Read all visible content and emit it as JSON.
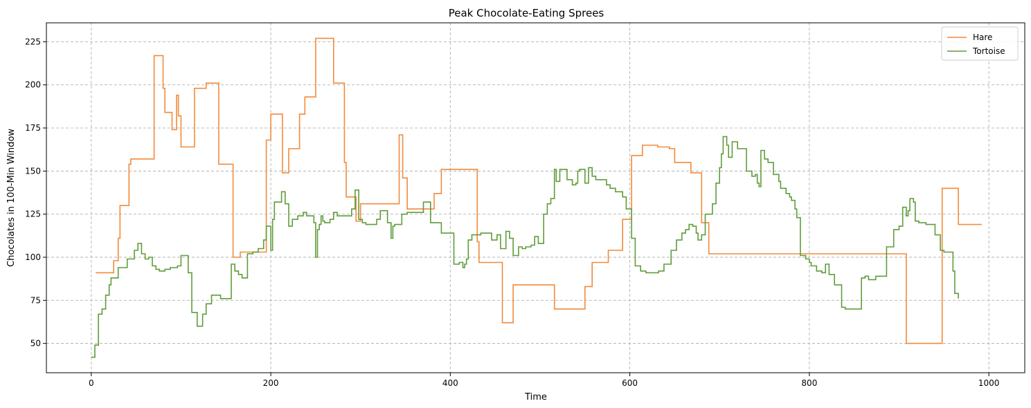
{
  "chart_data": {
    "type": "line",
    "step": "post",
    "title": "Peak Chocolate-Eating Sprees",
    "xlabel": "Time",
    "ylabel": "Chocolates in 100-Min Window",
    "xlim": [
      -50,
      1040
    ],
    "ylim": [
      33,
      236
    ],
    "xticks": [
      0,
      200,
      400,
      600,
      800,
      1000
    ],
    "yticks": [
      50,
      75,
      100,
      125,
      150,
      175,
      200,
      225
    ],
    "grid": true,
    "legend_position": "top-right",
    "series": [
      {
        "name": "Hare",
        "color": "#f28a3a",
        "x": [
          5,
          25,
          30,
          32,
          42,
          44,
          70,
          80,
          82,
          90,
          95,
          97,
          100,
          115,
          128,
          142,
          158,
          166,
          178,
          195,
          200,
          213,
          220,
          232,
          238,
          250,
          270,
          282,
          284,
          295,
          300,
          343,
          347,
          352,
          382,
          390,
          430,
          432,
          458,
          470,
          516,
          550,
          558,
          576,
          592,
          602,
          614,
          631,
          637,
          644,
          650,
          668,
          680,
          688,
          908,
          948,
          966,
          992
        ],
        "y": [
          91,
          98,
          111,
          130,
          154,
          157,
          217,
          198,
          184,
          174,
          194,
          182,
          164,
          198,
          201,
          154,
          100,
          103,
          103,
          168,
          183,
          149,
          163,
          183,
          193,
          227,
          201,
          155,
          135,
          121,
          131,
          171,
          146,
          128,
          137,
          151,
          109,
          97,
          62,
          84,
          70,
          83,
          97,
          104,
          122,
          159,
          165,
          164,
          164,
          163,
          155,
          149,
          120,
          102,
          50,
          140,
          119,
          119
        ]
      },
      {
        "name": "Tortoise",
        "color": "#5f9c3a",
        "x": [
          0,
          4,
          8,
          12,
          16,
          20,
          22,
          24,
          30,
          40,
          48,
          52,
          56,
          60,
          64,
          68,
          72,
          76,
          82,
          88,
          96,
          100,
          108,
          112,
          118,
          124,
          128,
          134,
          144,
          156,
          160,
          164,
          168,
          174,
          180,
          186,
          192,
          195,
          200,
          202,
          204,
          212,
          216,
          220,
          224,
          230,
          236,
          240,
          248,
          250,
          252,
          254,
          256,
          258,
          260,
          266,
          270,
          274,
          290,
          294,
          298,
          302,
          306,
          318,
          322,
          330,
          334,
          336,
          338,
          346,
          352,
          370,
          378,
          390,
          404,
          410,
          414,
          416,
          418,
          420,
          424,
          434,
          440,
          442,
          446,
          452,
          456,
          462,
          466,
          470,
          476,
          480,
          484,
          490,
          494,
          498,
          504,
          508,
          512,
          516,
          518,
          522,
          530,
          536,
          540,
          542,
          544,
          550,
          554,
          558,
          562,
          574,
          578,
          584,
          592,
          596,
          602,
          606,
          612,
          618,
          624,
          632,
          638,
          646,
          652,
          658,
          662,
          666,
          670,
          674,
          676,
          680,
          684,
          690,
          692,
          696,
          700,
          702,
          704,
          708,
          710,
          714,
          720,
          730,
          736,
          740,
          742,
          744,
          746,
          750,
          754,
          760,
          766,
          768,
          774,
          778,
          780,
          784,
          786,
          790,
          796,
          800,
          802,
          808,
          814,
          818,
          822,
          828,
          836,
          840,
          844,
          858,
          862,
          866,
          874,
          878,
          886,
          894,
          900,
          904,
          908,
          910,
          912,
          916,
          918,
          922,
          930,
          940,
          946,
          950,
          960,
          962,
          966
        ],
        "y": [
          42,
          49,
          67,
          70,
          78,
          84,
          88,
          88,
          94,
          99,
          104,
          108,
          102,
          99,
          100,
          95,
          93,
          92,
          93,
          94,
          95,
          101,
          91,
          68,
          60,
          67,
          73,
          78,
          76,
          96,
          92,
          90,
          88,
          102,
          103,
          105,
          110,
          118,
          104,
          122,
          132,
          138,
          131,
          118,
          122,
          124,
          126,
          124,
          120,
          100,
          116,
          119,
          124,
          121,
          120,
          122,
          126,
          124,
          128,
          139,
          122,
          120,
          119,
          122,
          127,
          120,
          111,
          118,
          119,
          125,
          126,
          132,
          120,
          114,
          96,
          97,
          94,
          96,
          99,
          110,
          113,
          114,
          114,
          114,
          110,
          113,
          105,
          115,
          111,
          101,
          106,
          105,
          106,
          107,
          112,
          108,
          125,
          131,
          134,
          151,
          144,
          151,
          145,
          142,
          143,
          150,
          151,
          143,
          152,
          147,
          145,
          142,
          140,
          138,
          135,
          128,
          111,
          95,
          92,
          91,
          91,
          92,
          96,
          104,
          110,
          114,
          116,
          119,
          118,
          114,
          110,
          113,
          125,
          125,
          131,
          143,
          152,
          160,
          170,
          165,
          158,
          167,
          163,
          150,
          147,
          148,
          143,
          141,
          162,
          157,
          155,
          148,
          144,
          140,
          137,
          135,
          133,
          128,
          123,
          101,
          99,
          97,
          95,
          92,
          91,
          96,
          90,
          84,
          71,
          70,
          70,
          88,
          89,
          87,
          89,
          89,
          106,
          116,
          118,
          129,
          124,
          127,
          134,
          132,
          121,
          120,
          119,
          113,
          104,
          103,
          92,
          79,
          76
        ]
      }
    ]
  }
}
